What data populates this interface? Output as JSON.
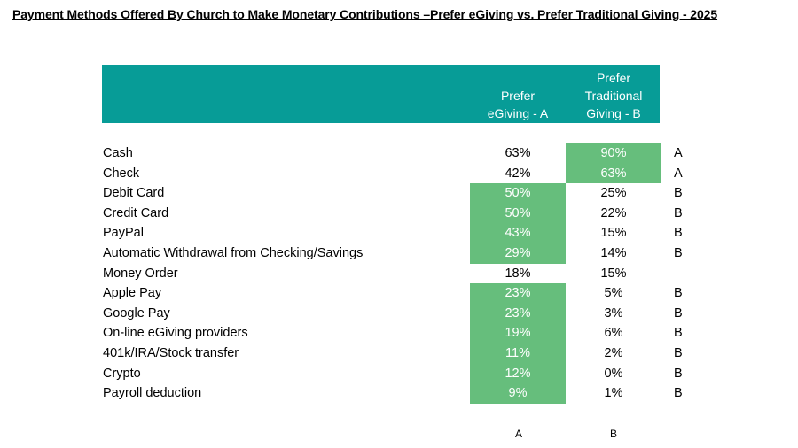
{
  "title": "Payment Methods Offered By Church to Make Monetary Contributions –Prefer eGiving vs. Prefer Traditional Giving  - 2025",
  "header": {
    "col_a": [
      "Prefer",
      "eGiving - A"
    ],
    "col_b": [
      "Prefer",
      "Traditional",
      "Giving - B"
    ]
  },
  "colors": {
    "header_band": "#079c97",
    "highlight": "#66be7c"
  },
  "chart_data": {
    "type": "table",
    "title": "Payment Methods Offered By Church to Make Monetary Contributions –Prefer eGiving vs. Prefer Traditional Giving  - 2025",
    "columns": [
      "Prefer eGiving - A",
      "Prefer Traditional Giving - B"
    ],
    "rows": [
      {
        "label": "Cash",
        "a": "63%",
        "b": "90%",
        "sig": "A",
        "highlight": "b"
      },
      {
        "label": "Check",
        "a": "42%",
        "b": "63%",
        "sig": "A",
        "highlight": "b"
      },
      {
        "label": "Debit Card",
        "a": "50%",
        "b": "25%",
        "sig": "B",
        "highlight": "a"
      },
      {
        "label": "Credit Card",
        "a": "50%",
        "b": "22%",
        "sig": "B",
        "highlight": "a"
      },
      {
        "label": "PayPal",
        "a": "43%",
        "b": "15%",
        "sig": "B",
        "highlight": "a"
      },
      {
        "label": "Automatic Withdrawal from Checking/Savings",
        "a": "29%",
        "b": "14%",
        "sig": "B",
        "highlight": "a"
      },
      {
        "label": "Money Order",
        "a": "18%",
        "b": "15%",
        "sig": "",
        "highlight": ""
      },
      {
        "label": "Apple Pay",
        "a": "23%",
        "b": "5%",
        "sig": "B",
        "highlight": "a"
      },
      {
        "label": "Google Pay",
        "a": "23%",
        "b": "3%",
        "sig": "B",
        "highlight": "a"
      },
      {
        "label": "On-line eGiving providers",
        "a": "19%",
        "b": "6%",
        "sig": "B",
        "highlight": "a"
      },
      {
        "label": "401k/IRA/Stock transfer",
        "a": "11%",
        "b": "2%",
        "sig": "B",
        "highlight": "a"
      },
      {
        "label": "Crypto",
        "a": "12%",
        "b": "0%",
        "sig": "B",
        "highlight": "a"
      },
      {
        "label": "Payroll deduction",
        "a": "9%",
        "b": "1%",
        "sig": "B",
        "highlight": "a"
      }
    ]
  },
  "footer": {
    "letter_a": "A",
    "letter_b": "B"
  }
}
